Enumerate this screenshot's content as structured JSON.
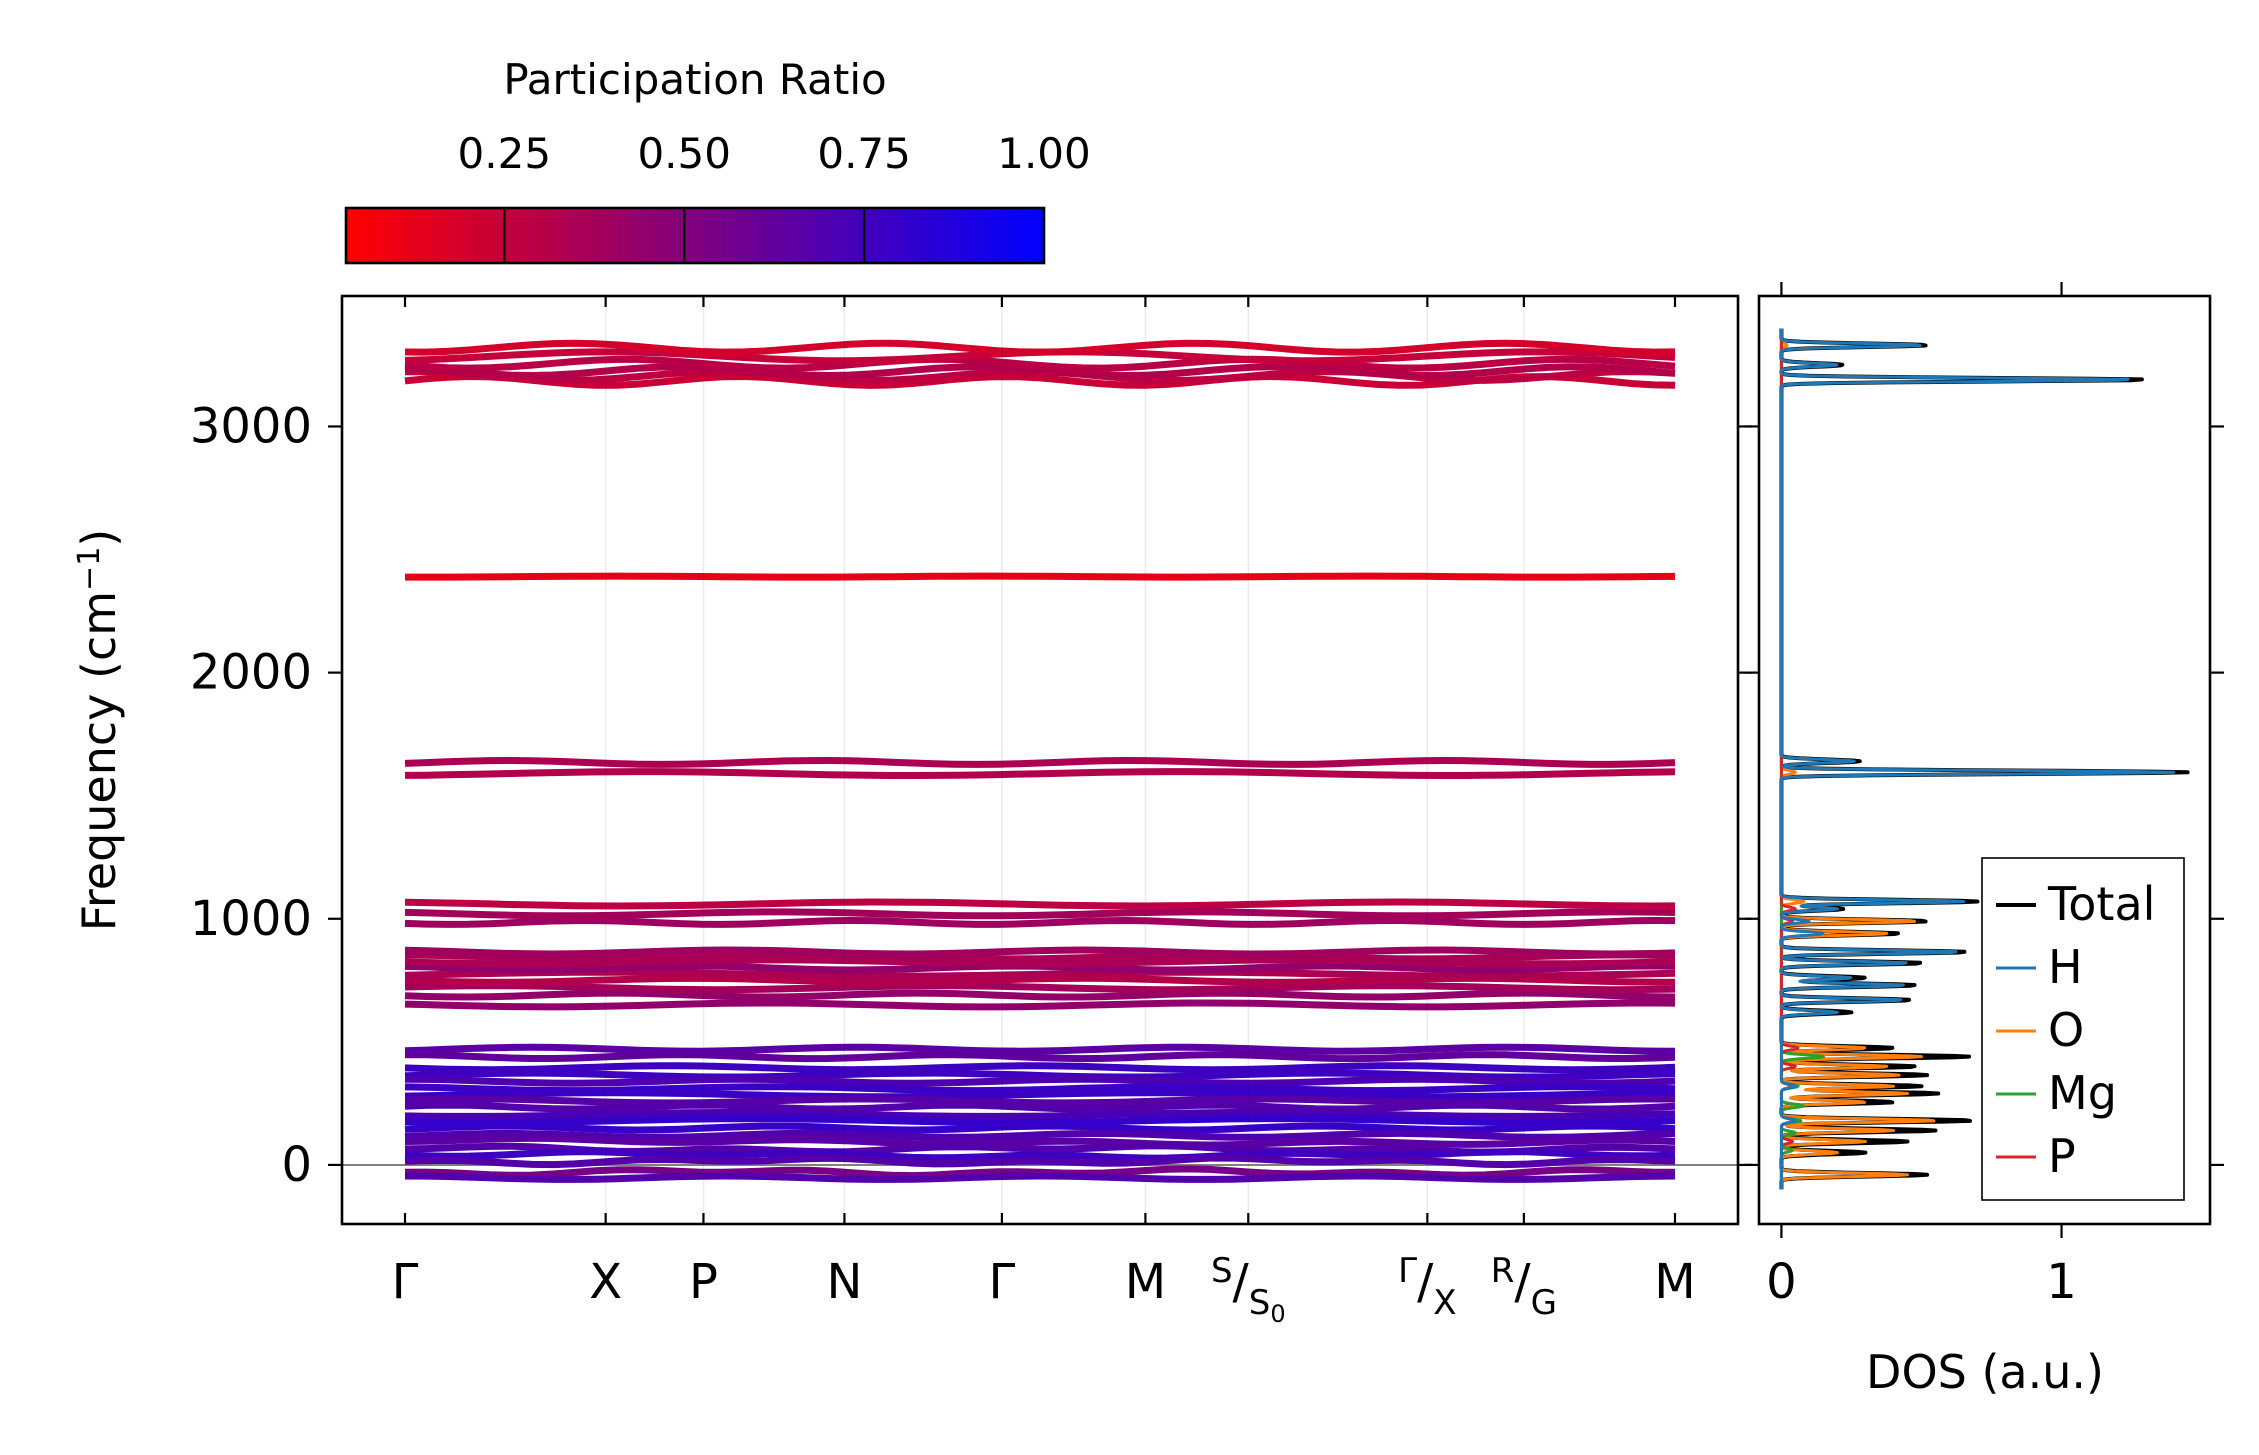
{
  "chart_data": [
    {
      "type": "line",
      "name": "phonon-band-structure",
      "ylabel": "Frequency (cm",
      "ylabel_sup": "−1",
      "ylabel_tail": ")",
      "ylim": [
        -240,
        3530
      ],
      "yticks": [
        0,
        1000,
        2000,
        3000
      ],
      "ytick_labels": [
        "0",
        "1000",
        "2000",
        "3000"
      ],
      "kpath": [
        {
          "main": "Γ",
          "pos": 0.0
        },
        {
          "main": "X",
          "pos": 0.158
        },
        {
          "main": "P",
          "pos": 0.235
        },
        {
          "main": "N",
          "pos": 0.346
        },
        {
          "main": "Γ",
          "pos": 0.47
        },
        {
          "main": "M",
          "pos": 0.583
        },
        {
          "main": "S",
          "sub": "S",
          "subsub": "0",
          "pos": 0.664
        },
        {
          "main": "Γ",
          "sub": "X",
          "pos": 0.805
        },
        {
          "main": "R",
          "sub": "G",
          "pos": 0.881
        },
        {
          "main": "M",
          "pos": 1.0
        }
      ],
      "band_groups": [
        {
          "freqs": [
            3185,
            3205,
            3225,
            3255,
            3285,
            3320
          ],
          "pr": 0.25
        },
        {
          "freqs": [
            2390
          ],
          "pr": 0.02
        },
        {
          "freqs": [
            1590,
            1635
          ],
          "pr": 0.3
        },
        {
          "freqs": [
            985,
            1020,
            1060
          ],
          "pr": 0.3
        },
        {
          "freqs": [
            650,
            690,
            720,
            750,
            775,
            800,
            825,
            845,
            865
          ],
          "pr": 0.35
        },
        {
          "freqs": [
            440,
            470
          ],
          "pr": 0.62
        },
        {
          "freqs": [
            395,
            365,
            340,
            310,
            285,
            260,
            235,
            205,
            180,
            150,
            120,
            95,
            65,
            40,
            15
          ],
          "pr": 0.72
        },
        {
          "freqs": [
            -30,
            -45
          ],
          "pr": 0.6
        }
      ],
      "colorbar": {
        "title": "Participation Ratio",
        "ticks": [
          0.25,
          0.5,
          0.75,
          1.0
        ],
        "tick_labels": [
          "0.25",
          "0.50",
          "0.75",
          "1.00"
        ],
        "vmin": 0.03,
        "vmax": 1.0,
        "color_low": "#ff0000",
        "color_mid": "#7f007f",
        "color_high": "#0000ff"
      }
    },
    {
      "type": "line",
      "name": "phonon-dos",
      "xlabel": "DOS (a.u.)",
      "xticks": [
        0,
        1
      ],
      "xtick_labels": [
        "0",
        "1"
      ],
      "xlim": [
        -0.08,
        1.53
      ],
      "ylim": [
        -240,
        3530
      ],
      "series": [
        {
          "name": "Total",
          "color": "#000000",
          "peaks": [
            [
              3330,
              0.52
            ],
            [
              3250,
              0.22
            ],
            [
              3190,
              1.3
            ],
            [
              1640,
              0.28
            ],
            [
              1595,
              1.45
            ],
            [
              1070,
              0.7
            ],
            [
              1040,
              0.22
            ],
            [
              990,
              0.52
            ],
            [
              940,
              0.42
            ],
            [
              865,
              0.66
            ],
            [
              820,
              0.5
            ],
            [
              760,
              0.3
            ],
            [
              730,
              0.48
            ],
            [
              670,
              0.46
            ],
            [
              620,
              0.25
            ],
            [
              475,
              0.4
            ],
            [
              440,
              0.67
            ],
            [
              400,
              0.48
            ],
            [
              365,
              0.52
            ],
            [
              320,
              0.5
            ],
            [
              290,
              0.56
            ],
            [
              255,
              0.4
            ],
            [
              180,
              0.68
            ],
            [
              140,
              0.55
            ],
            [
              95,
              0.45
            ],
            [
              50,
              0.3
            ],
            [
              -40,
              0.52
            ]
          ]
        },
        {
          "name": "H",
          "color": "#1f77b4",
          "peaks": [
            [
              3330,
              0.5
            ],
            [
              3250,
              0.2
            ],
            [
              3190,
              1.25
            ],
            [
              1640,
              0.26
            ],
            [
              1595,
              1.4
            ],
            [
              1070,
              0.65
            ],
            [
              1040,
              0.2
            ],
            [
              990,
              0.1
            ],
            [
              940,
              0.15
            ],
            [
              865,
              0.63
            ],
            [
              820,
              0.45
            ],
            [
              760,
              0.25
            ],
            [
              730,
              0.44
            ],
            [
              670,
              0.43
            ],
            [
              620,
              0.2
            ],
            [
              320,
              0.05
            ],
            [
              180,
              0.05
            ]
          ]
        },
        {
          "name": "O",
          "color": "#ff7f0e",
          "peaks": [
            [
              3330,
              0.02
            ],
            [
              1595,
              0.05
            ],
            [
              1070,
              0.08
            ],
            [
              990,
              0.48
            ],
            [
              940,
              0.38
            ],
            [
              475,
              0.3
            ],
            [
              440,
              0.5
            ],
            [
              400,
              0.38
            ],
            [
              365,
              0.42
            ],
            [
              320,
              0.4
            ],
            [
              290,
              0.45
            ],
            [
              255,
              0.3
            ],
            [
              180,
              0.55
            ],
            [
              140,
              0.4
            ],
            [
              95,
              0.3
            ],
            [
              50,
              0.2
            ],
            [
              -40,
              0.45
            ]
          ]
        },
        {
          "name": "Mg",
          "color": "#2ca02c",
          "peaks": [
            [
              440,
              0.15
            ],
            [
              320,
              0.06
            ],
            [
              240,
              0.08
            ],
            [
              180,
              0.07
            ],
            [
              130,
              0.05
            ],
            [
              60,
              0.04
            ]
          ]
        },
        {
          "name": "P",
          "color": "#d62728",
          "peaks": [
            [
              1040,
              0.05
            ],
            [
              990,
              0.04
            ],
            [
              475,
              0.06
            ],
            [
              400,
              0.05
            ],
            [
              320,
              0.04
            ],
            [
              180,
              0.05
            ],
            [
              95,
              0.04
            ]
          ]
        }
      ],
      "legend": {
        "position": "lower right",
        "entries": [
          "Total",
          "H",
          "O",
          "Mg",
          "P"
        ]
      }
    }
  ]
}
